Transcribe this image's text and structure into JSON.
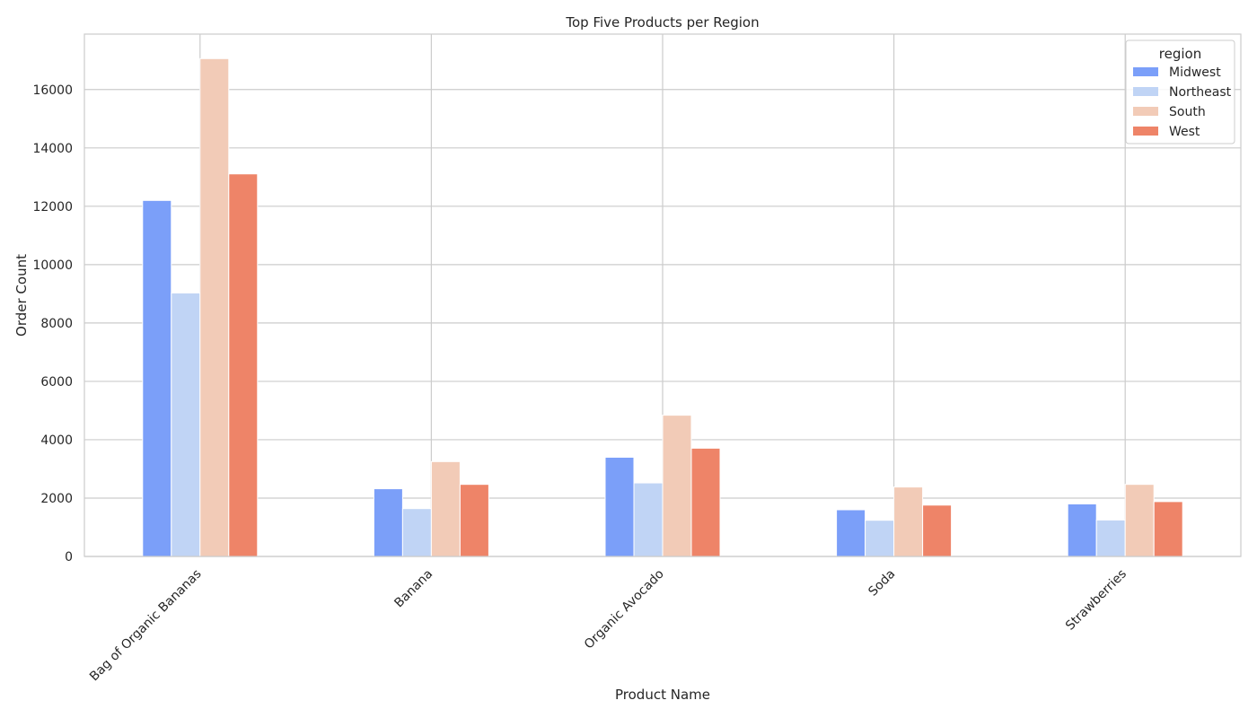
{
  "chart_data": {
    "type": "bar",
    "title": "Top Five Products per Region",
    "xlabel": "Product Name",
    "ylabel": "Order Count",
    "categories": [
      "Bag of Organic Bananas",
      "Banana",
      "Organic Avocado",
      "Soda",
      "Strawberries"
    ],
    "series": [
      {
        "name": "Midwest",
        "color": "#7b9ff9",
        "values": [
          12200,
          2320,
          3400,
          1600,
          1800
        ]
      },
      {
        "name": "Northeast",
        "color": "#c0d4f5",
        "values": [
          9030,
          1640,
          2520,
          1240,
          1250
        ]
      },
      {
        "name": "South",
        "color": "#f2cbb7",
        "values": [
          17060,
          3250,
          4840,
          2380,
          2470
        ]
      },
      {
        "name": "West",
        "color": "#ee8468",
        "values": [
          13110,
          2470,
          3710,
          1760,
          1880
        ]
      }
    ],
    "ylim": [
      0,
      17900
    ],
    "yticks": [
      0,
      2000,
      4000,
      6000,
      8000,
      10000,
      12000,
      14000,
      16000
    ],
    "grid": true,
    "legend": {
      "title": "region",
      "position": "top-right"
    }
  }
}
